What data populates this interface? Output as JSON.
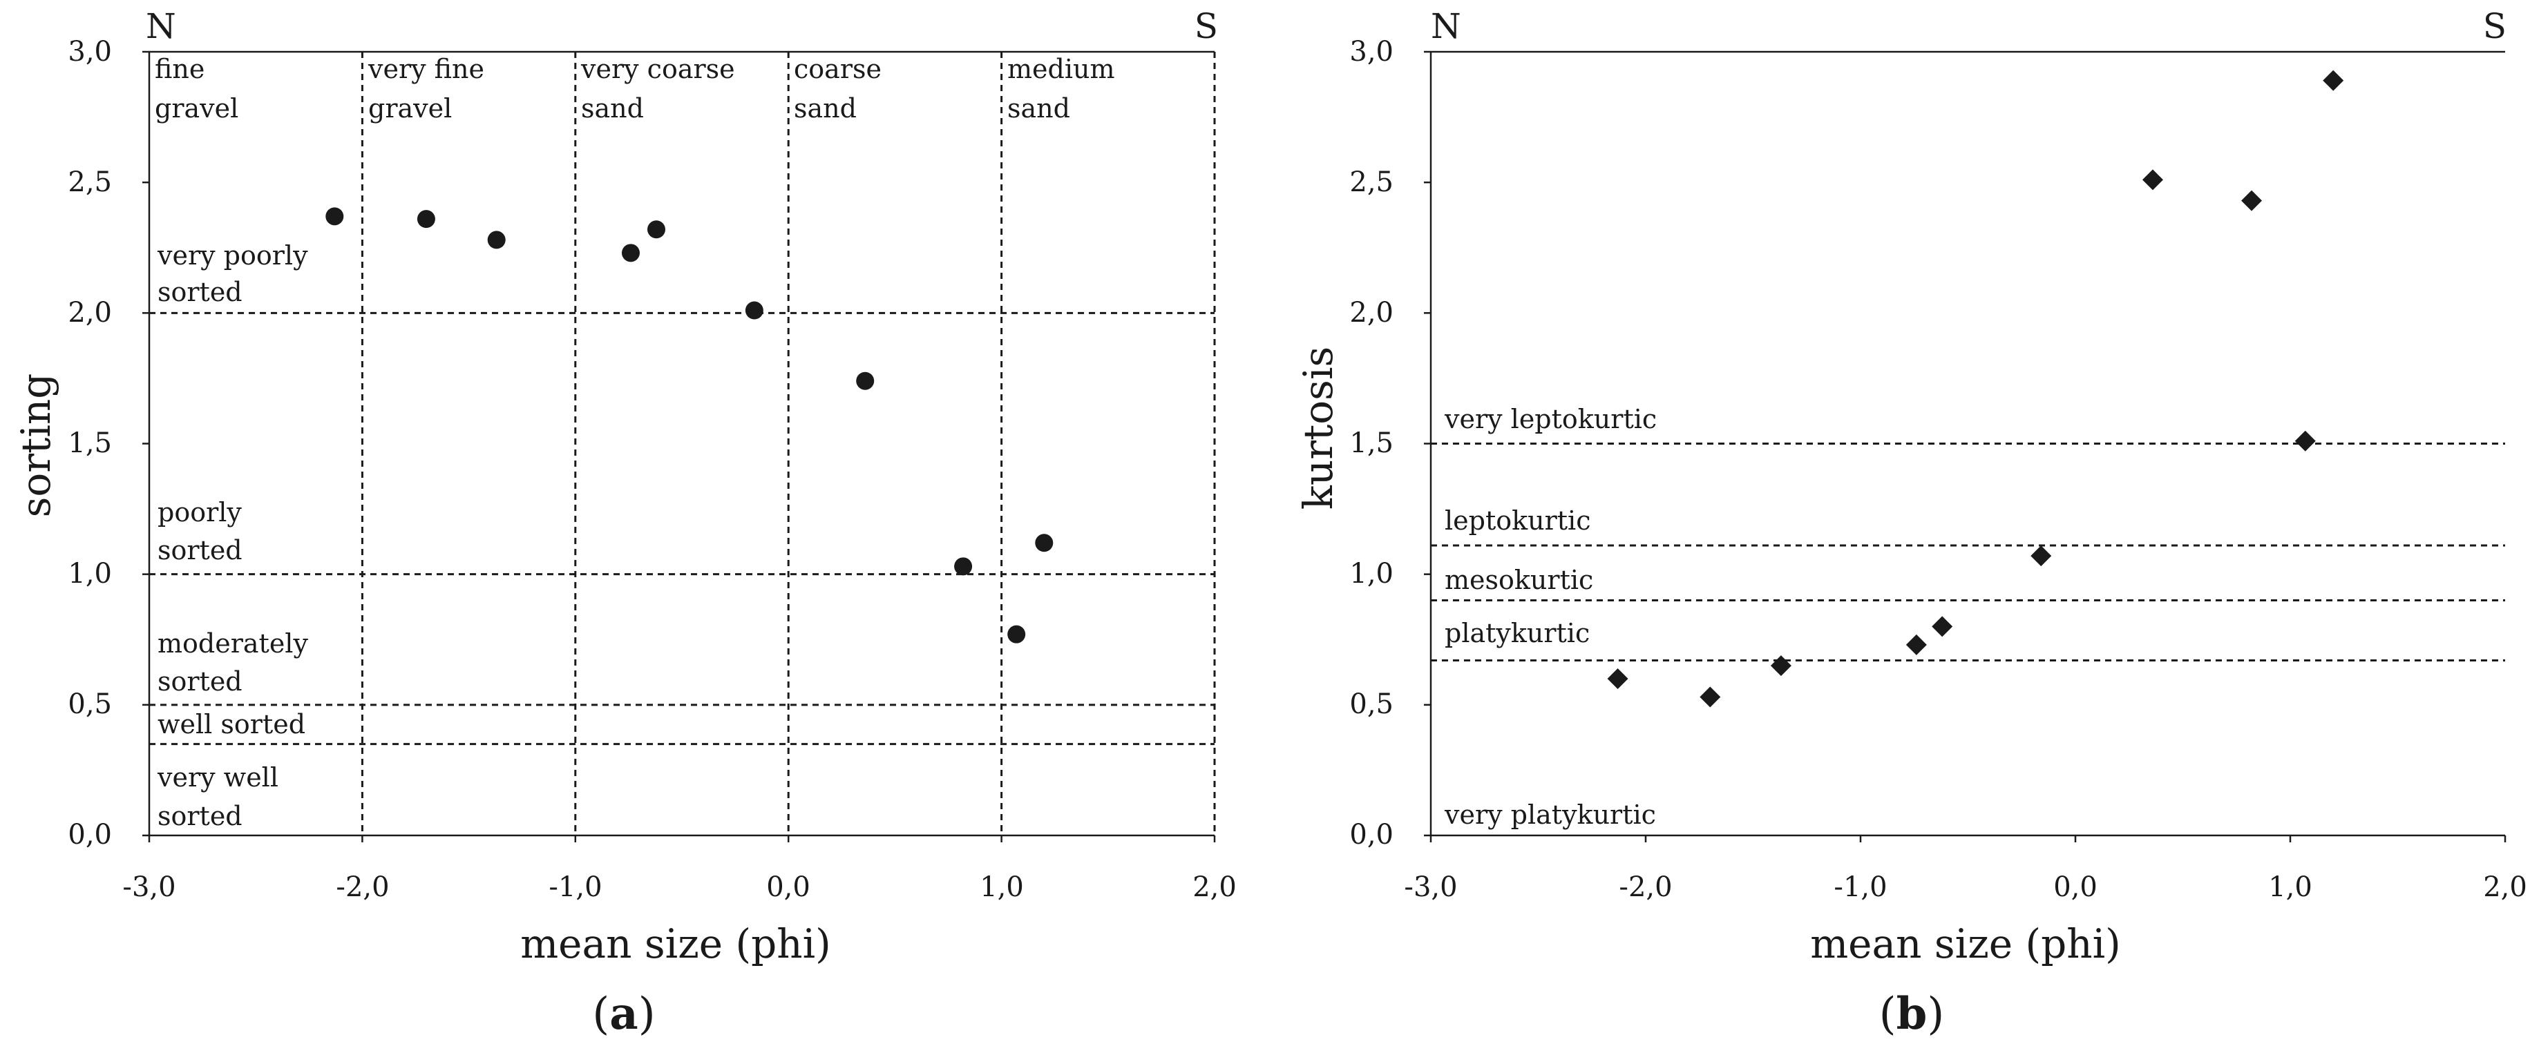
{
  "chart_data": [
    {
      "type": "scatter",
      "marker": "circle",
      "panel_label": "a",
      "xlabel": "mean size (phi)",
      "ylabel": "sorting",
      "xlim": [
        -3.0,
        2.0
      ],
      "ylim": [
        0.0,
        3.0
      ],
      "x_ticks": [
        "-3,0",
        "-2,0",
        "-1,0",
        "0,0",
        "1,0",
        "2,0"
      ],
      "y_ticks": [
        "0,0",
        "0,5",
        "1,0",
        "1,5",
        "2,0",
        "2,5",
        "3,0"
      ],
      "corner_left": "N",
      "corner_right": "S",
      "size_classes": [
        {
          "line1": "fine",
          "line2": "gravel",
          "from": -3.0,
          "to": -2.0
        },
        {
          "line1": "very fine",
          "line2": "gravel",
          "from": -2.0,
          "to": -1.0
        },
        {
          "line1": "very coarse",
          "line2": "sand",
          "from": -1.0,
          "to": 0.0
        },
        {
          "line1": "coarse",
          "line2": "sand",
          "from": 0.0,
          "to": 1.0
        },
        {
          "line1": "medium",
          "line2": "sand",
          "from": 1.0,
          "to": 2.0
        }
      ],
      "sorting_classes": [
        {
          "line1": "very poorly",
          "line2": "sorted",
          "lower": 2.0
        },
        {
          "line1": "poorly",
          "line2": "sorted",
          "lower": 1.0
        },
        {
          "line1": "moderately",
          "line2": "sorted",
          "lower": 0.5
        },
        {
          "line1": "well sorted",
          "line2": "",
          "lower": 0.35
        },
        {
          "line1": "very well",
          "line2": "sorted",
          "lower": 0.0
        }
      ],
      "points": [
        {
          "x": -2.13,
          "y": 2.37
        },
        {
          "x": -1.7,
          "y": 2.36
        },
        {
          "x": -1.37,
          "y": 2.28
        },
        {
          "x": -0.74,
          "y": 2.23
        },
        {
          "x": -0.62,
          "y": 2.32
        },
        {
          "x": -0.16,
          "y": 2.01
        },
        {
          "x": 0.36,
          "y": 1.74
        },
        {
          "x": 0.82,
          "y": 1.03
        },
        {
          "x": 1.07,
          "y": 0.77
        },
        {
          "x": 1.2,
          "y": 1.12
        }
      ]
    },
    {
      "type": "scatter",
      "marker": "diamond",
      "panel_label": "b",
      "xlabel": "mean size (phi)",
      "ylabel": "kurtosis",
      "xlim": [
        -3.0,
        2.0
      ],
      "ylim": [
        0.0,
        3.0
      ],
      "x_ticks": [
        "-3,0",
        "-2,0",
        "-1,0",
        "0,0",
        "1,0",
        "2,0"
      ],
      "y_ticks": [
        "0,0",
        "0,5",
        "1,0",
        "1,5",
        "2,0",
        "2,5",
        "3,0"
      ],
      "corner_left": "N",
      "corner_right": "S",
      "kurtosis_classes": [
        {
          "label": "very leptokurtic",
          "lower": 1.5
        },
        {
          "label": "leptokurtic",
          "lower": 1.11
        },
        {
          "label": "mesokurtic",
          "lower": 0.9
        },
        {
          "label": "platykurtic",
          "lower": 0.67
        },
        {
          "label": "very platykurtic",
          "lower": 0.0
        }
      ],
      "points": [
        {
          "x": -2.13,
          "y": 0.6
        },
        {
          "x": -1.7,
          "y": 0.53
        },
        {
          "x": -1.37,
          "y": 0.65
        },
        {
          "x": -0.74,
          "y": 0.73
        },
        {
          "x": -0.62,
          "y": 0.8
        },
        {
          "x": -0.16,
          "y": 1.07
        },
        {
          "x": 0.36,
          "y": 2.51
        },
        {
          "x": 0.82,
          "y": 2.43
        },
        {
          "x": 1.07,
          "y": 1.51
        },
        {
          "x": 1.2,
          "y": 2.89
        }
      ]
    }
  ]
}
